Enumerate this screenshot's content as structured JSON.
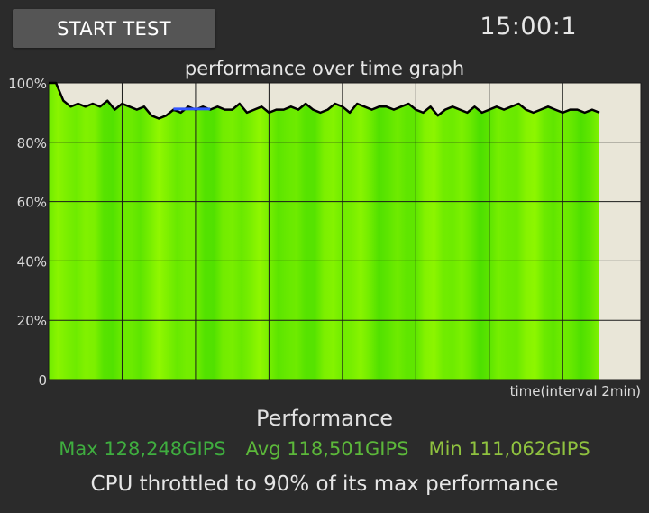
{
  "header": {
    "start_button_label": "START TEST",
    "timer": "15:00:1"
  },
  "chart_data": {
    "type": "area",
    "title": "performance over time graph",
    "xlabel": "time(interval 2min)",
    "ylabel": "",
    "ylim": [
      0,
      100
    ],
    "y_ticks": [
      "0",
      "20%",
      "40%",
      "60%",
      "80%",
      "100%"
    ],
    "x_gridline_interval_min": 2,
    "x_range_min": [
      0,
      15
    ],
    "grid": true,
    "series": [
      {
        "color": "#000000",
        "fill_color": "#66ee00",
        "x": [
          0,
          0.2,
          0.4,
          0.6,
          0.8,
          1.0,
          1.2,
          1.4,
          1.6,
          1.8,
          2.0,
          2.2,
          2.4,
          2.6,
          2.8,
          3.0,
          3.2,
          3.4,
          3.6,
          3.8,
          4.0,
          4.2,
          4.4,
          4.6,
          4.8,
          5.0,
          5.2,
          5.4,
          5.6,
          5.8,
          6.0,
          6.2,
          6.4,
          6.6,
          6.8,
          7.0,
          7.2,
          7.4,
          7.6,
          7.8,
          8.0,
          8.2,
          8.4,
          8.6,
          8.8,
          9.0,
          9.2,
          9.4,
          9.6,
          9.8,
          10.0,
          10.2,
          10.4,
          10.6,
          10.8,
          11.0,
          11.2,
          11.4,
          11.6,
          11.8,
          12.0,
          12.2,
          12.4,
          12.6,
          12.8,
          13.0,
          13.2,
          13.4,
          13.6,
          13.8,
          14.0,
          14.2,
          14.4,
          14.6,
          14.8,
          15.0
        ],
        "y": [
          100,
          100,
          94,
          92,
          93,
          92,
          93,
          92,
          94,
          91,
          93,
          92,
          91,
          92,
          89,
          88,
          89,
          91,
          90,
          92,
          91,
          92,
          91,
          92,
          91,
          91,
          93,
          90,
          91,
          92,
          90,
          91,
          91,
          92,
          91,
          93,
          91,
          90,
          91,
          93,
          92,
          90,
          93,
          92,
          91,
          92,
          92,
          91,
          92,
          93,
          91,
          90,
          92,
          89,
          91,
          92,
          91,
          90,
          92,
          90,
          91,
          92,
          91,
          92,
          93,
          91,
          90,
          91,
          92,
          91,
          90,
          91,
          91,
          90,
          91,
          90
        ]
      }
    ],
    "highlight": {
      "color": "#3355ff",
      "x": [
        3.4,
        4.4
      ],
      "y": 90
    }
  },
  "summary": {
    "title": "Performance",
    "max": "Max 128,248GIPS",
    "avg": "Avg 118,501GIPS",
    "min": "Min 111,062GIPS",
    "throttle_message": "CPU throttled to 90% of its max performance"
  }
}
